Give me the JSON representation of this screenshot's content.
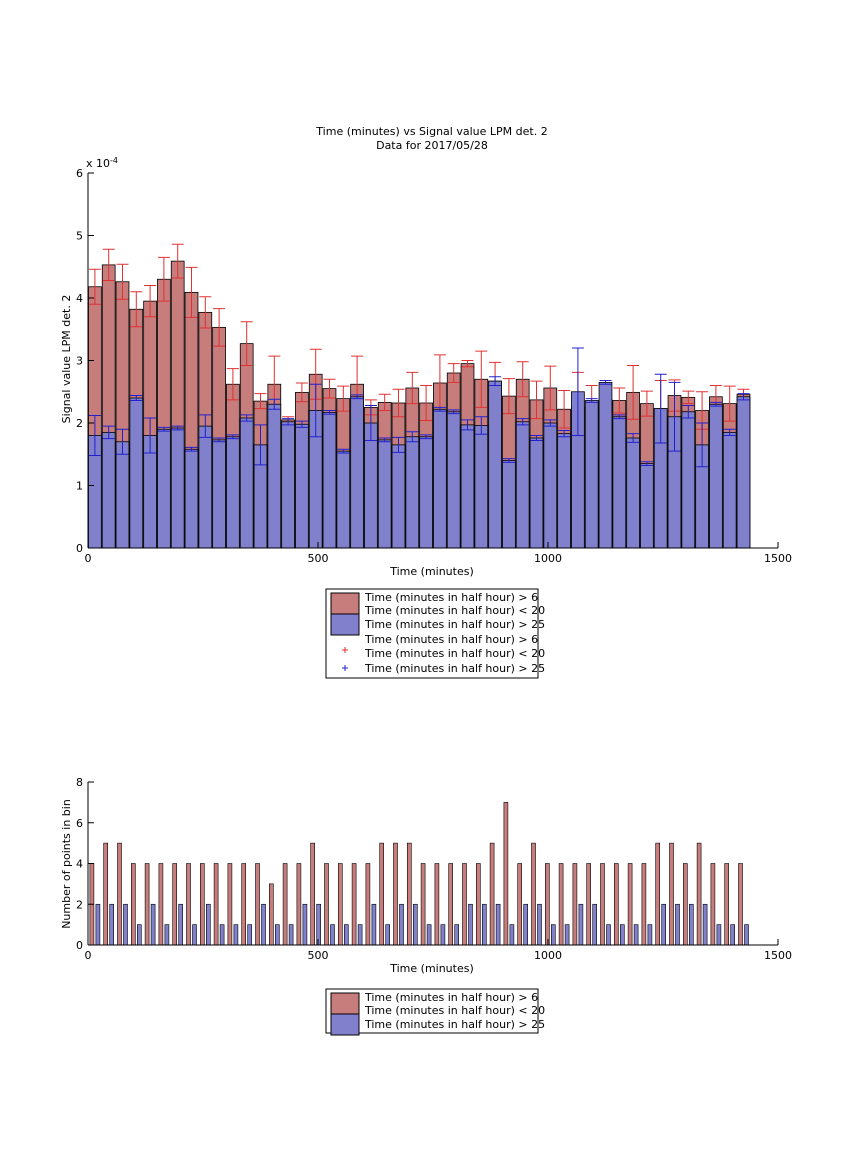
{
  "chart_data": [
    {
      "type": "bar",
      "title": "Time (minutes) vs Signal value LPM det. 2",
      "subtitle": "Data for 2017/05/28",
      "xlabel": "Time (minutes)",
      "ylabel": "Signal value LPM det. 2",
      "y_exponent_label": "x 10",
      "y_exponent_power": "-4",
      "xlim": [
        0,
        1500
      ],
      "ylim": [
        0,
        6
      ],
      "xticks": [
        "0",
        "500",
        "1000",
        "1500"
      ],
      "yticks": [
        "0",
        "1",
        "2",
        "3",
        "4",
        "5",
        "6"
      ],
      "bar_width_minutes": 28,
      "grid": false,
      "legend_placement": "below",
      "legend": [
        "Time (minutes in half hour) > 6",
        "Time (minutes in half hour) < 20",
        "Time (minutes in half hour) > 25",
        "Time (minutes in half hour) > 6",
        "Time (minutes in half hour) < 20",
        "Time (minutes in half hour) > 25"
      ],
      "colors": {
        "red_bar": "#c87d7d",
        "red_line": "#e03030",
        "blue_bar": "#8080cc",
        "blue_line": "#2020d0",
        "edge": "#000000"
      },
      "x": [
        15,
        45,
        75,
        105,
        135,
        165,
        195,
        225,
        255,
        285,
        315,
        345,
        375,
        405,
        435,
        465,
        495,
        525,
        555,
        585,
        615,
        645,
        675,
        705,
        735,
        765,
        795,
        825,
        855,
        885,
        915,
        945,
        975,
        1005,
        1035,
        1065,
        1095,
        1125,
        1155,
        1185,
        1215,
        1245,
        1275,
        1305,
        1335,
        1365,
        1395,
        1425
      ],
      "series": [
        {
          "values": [
            4.18,
            4.53,
            4.26,
            3.82,
            3.95,
            4.3,
            4.59,
            4.09,
            3.77,
            3.53,
            2.62,
            3.27,
            2.35,
            2.62,
            2.05,
            2.49,
            2.78,
            2.55,
            2.39,
            2.62,
            2.25,
            2.33,
            2.32,
            2.56,
            2.32,
            2.64,
            2.8,
            2.95,
            2.7,
            2.67,
            2.43,
            2.7,
            2.37,
            2.56,
            2.22,
            2.26,
            2.35,
            2.38,
            2.36,
            2.49,
            2.31,
            2.23,
            2.44,
            2.41,
            2.2,
            2.42,
            2.31,
            2.46
          ],
          "errors": [
            0.28,
            0.25,
            0.28,
            0.28,
            0.25,
            0.35,
            0.27,
            0.4,
            0.25,
            0.3,
            0.25,
            0.35,
            0.12,
            0.45,
            0.05,
            0.15,
            0.4,
            0.15,
            0.2,
            0.45,
            0.12,
            0.13,
            0.22,
            0.25,
            0.28,
            0.45,
            0.15,
            0.05,
            0.45,
            0.3,
            0.28,
            0.28,
            0.3,
            0.35,
            0.3,
            0.55,
            0.25,
            0.2,
            0.2,
            0.43,
            0.2,
            0.45,
            0.25,
            0.1,
            0.3,
            0.18,
            0.28,
            0.08
          ]
        },
        {
          "values": [
            1.8,
            1.85,
            1.7,
            2.4,
            1.8,
            1.9,
            1.92,
            1.58,
            1.95,
            1.73,
            1.78,
            2.08,
            1.65,
            2.3,
            2.02,
            1.98,
            2.2,
            2.17,
            1.55,
            2.42,
            2.0,
            1.73,
            1.65,
            1.78,
            1.78,
            2.22,
            2.18,
            1.97,
            1.96,
            2.67,
            1.4,
            2.02,
            1.76,
            2.0,
            1.83,
            2.5,
            2.36,
            2.65,
            2.1,
            1.76,
            1.35,
            2.23,
            2.1,
            2.18,
            1.65,
            2.3,
            1.85,
            2.42
          ],
          "errors": [
            0.32,
            0.1,
            0.2,
            0.04,
            0.28,
            0.03,
            0.03,
            0.03,
            0.18,
            0.03,
            0.03,
            0.05,
            0.32,
            0.08,
            0.05,
            0.05,
            0.42,
            0.03,
            0.03,
            0.03,
            0.28,
            0.03,
            0.12,
            0.08,
            0.03,
            0.03,
            0.03,
            0.08,
            0.14,
            0.07,
            0.03,
            0.05,
            0.04,
            0.05,
            0.05,
            0.7,
            0.03,
            0.03,
            0.03,
            0.07,
            0.03,
            0.55,
            0.55,
            0.1,
            0.35,
            0.03,
            0.05,
            0.05
          ]
        }
      ]
    },
    {
      "type": "bar",
      "xlabel": "Time (minutes)",
      "ylabel": "Number of points in bin",
      "xlim": [
        0,
        1500
      ],
      "ylim": [
        0,
        8
      ],
      "xticks": [
        "0",
        "500",
        "1000",
        "1500"
      ],
      "yticks": [
        "0",
        "2",
        "4",
        "6",
        "8"
      ],
      "grid": false,
      "legend_placement": "below",
      "legend": [
        "Time (minutes in half hour) > 6",
        "Time (minutes in half hour) < 20",
        "Time (minutes in half hour) > 25"
      ],
      "x": [
        15,
        45,
        75,
        105,
        135,
        165,
        195,
        225,
        255,
        285,
        315,
        345,
        375,
        405,
        435,
        465,
        495,
        525,
        555,
        585,
        615,
        645,
        675,
        705,
        735,
        765,
        795,
        825,
        855,
        885,
        915,
        945,
        975,
        1005,
        1035,
        1065,
        1095,
        1125,
        1155,
        1185,
        1215,
        1245,
        1275,
        1305,
        1335,
        1365,
        1395,
        1425
      ],
      "series": [
        {
          "values": [
            4,
            5,
            5,
            4,
            4,
            4,
            4,
            4,
            4,
            4,
            4,
            4,
            4,
            3,
            4,
            4,
            5,
            4,
            4,
            4,
            4,
            5,
            5,
            5,
            4,
            4,
            4,
            4,
            4,
            5,
            7,
            4,
            5,
            4,
            4,
            4,
            4,
            4,
            4,
            4,
            4,
            5,
            5,
            4,
            5,
            4,
            4,
            4
          ]
        },
        {
          "values": [
            2,
            2,
            2,
            1,
            2,
            1,
            2,
            1,
            2,
            1,
            1,
            1,
            2,
            1,
            1,
            2,
            2,
            1,
            1,
            1,
            2,
            1,
            2,
            2,
            1,
            1,
            1,
            2,
            2,
            2,
            1,
            2,
            2,
            1,
            1,
            2,
            2,
            1,
            1,
            1,
            1,
            2,
            2,
            2,
            2,
            1,
            1,
            1
          ]
        }
      ]
    }
  ]
}
